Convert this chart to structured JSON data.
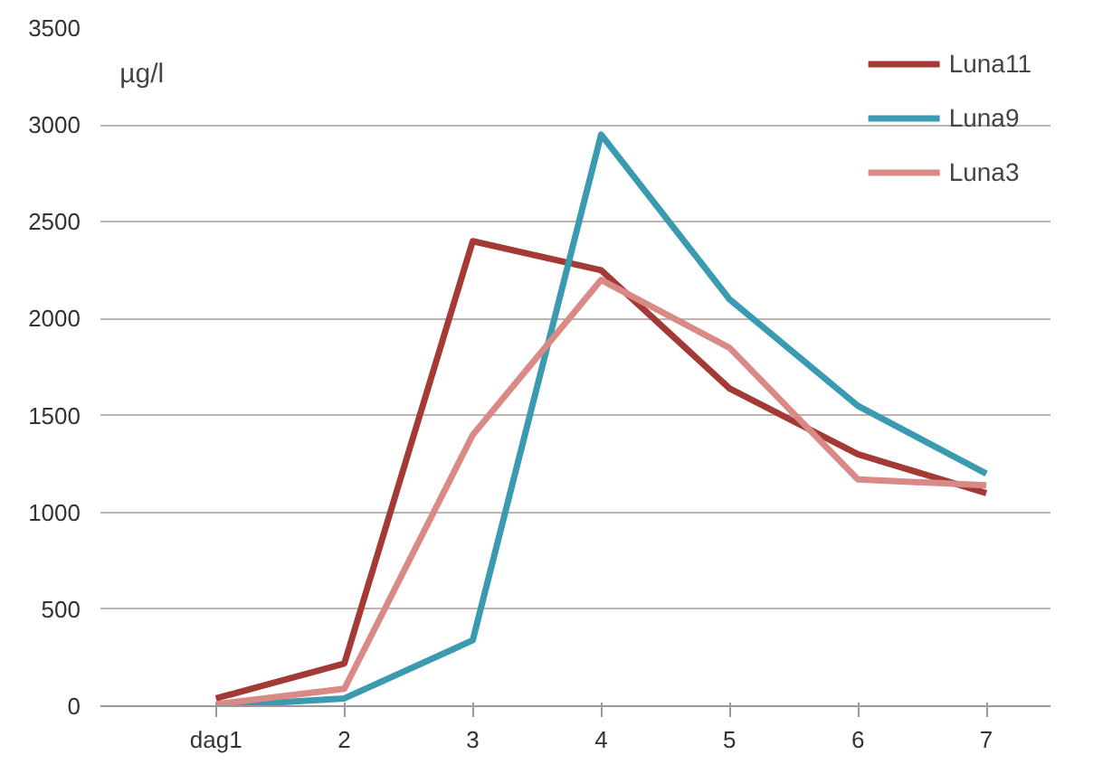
{
  "chart_data": {
    "type": "line",
    "categories": [
      "dag1",
      "2",
      "3",
      "4",
      "5",
      "6",
      "7"
    ],
    "series": [
      {
        "name": "Luna11",
        "color": "#a33a36",
        "values": [
          40,
          220,
          2400,
          2250,
          1640,
          1300,
          1100
        ]
      },
      {
        "name": "Luna9",
        "color": "#3a9bb0",
        "values": [
          0,
          40,
          340,
          2950,
          2100,
          1550,
          1200
        ]
      },
      {
        "name": "Luna3",
        "color": "#d98a86",
        "values": [
          10,
          90,
          1400,
          2200,
          1850,
          1170,
          1140
        ]
      }
    ],
    "ylim": [
      0,
      3500
    ],
    "yticks": [
      0,
      500,
      1000,
      1500,
      2000,
      2500,
      3000,
      3500
    ],
    "grid": "y",
    "legend": "top right",
    "annotations": [
      "µg/l"
    ],
    "line_style": "solid",
    "marker": "none"
  }
}
